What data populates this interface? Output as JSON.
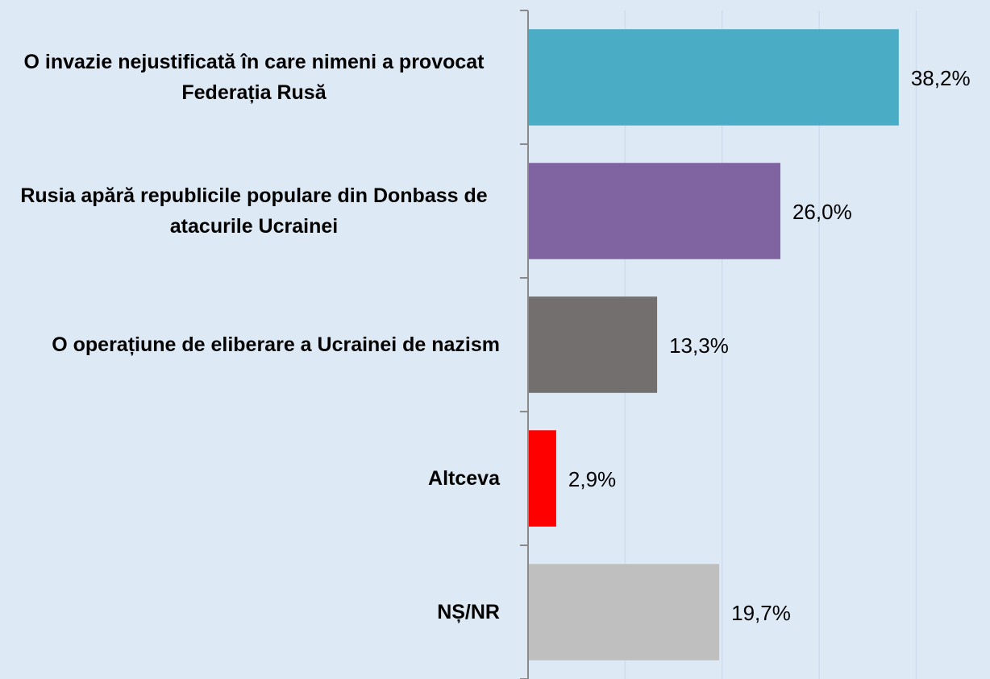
{
  "chart_data": {
    "type": "bar",
    "orientation": "horizontal",
    "categories": [
      "O invazie nejustificată în care nimeni a provocat Federația Rusă",
      "Rusia apără republicile populare din Donbass de atacurile Ucrainei",
      "O operațiune de eliberare a Ucrainei de nazism",
      "Altceva",
      "NȘ/NR"
    ],
    "values": [
      38.2,
      26.0,
      13.3,
      2.9,
      19.7
    ],
    "value_labels": [
      "38,2%",
      "26,0%",
      "13,3%",
      "2,9%",
      "19,7%"
    ],
    "colors": [
      "#4bacc6",
      "#8064a2",
      "#736f6e",
      "#ff0000",
      "#bfbfbf"
    ],
    "xlim": [
      0,
      47.6
    ],
    "xticks": [
      0,
      10,
      20,
      30,
      40
    ],
    "grid": true
  }
}
